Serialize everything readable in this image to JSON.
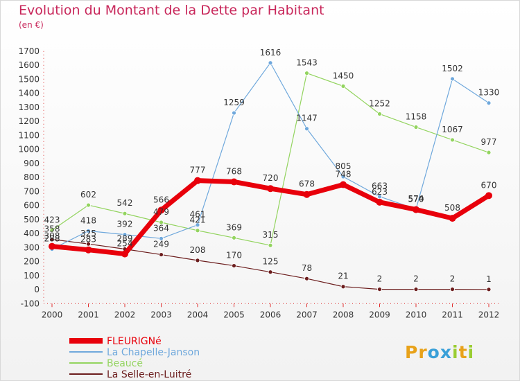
{
  "chart_data": {
    "type": "line",
    "title": "Evolution du Montant de la Dette par Habitant",
    "subtitle": "(en €)",
    "x": [
      "2000",
      "2001",
      "2002",
      "2003",
      "2004",
      "2005",
      "2006",
      "2007",
      "2008",
      "2009",
      "2010",
      "2011",
      "2012"
    ],
    "ylim": [
      -100,
      1700
    ],
    "yticks": [
      -100,
      0,
      100,
      200,
      300,
      400,
      500,
      600,
      700,
      800,
      900,
      1000,
      1100,
      1200,
      1300,
      1400,
      1500,
      1600,
      1700
    ],
    "grid": false,
    "legend_position": "bottom-left",
    "series": [
      {
        "name": "FLEURIGNé",
        "color": "#e8000b",
        "values": [
          308,
          283,
          254,
          566,
          777,
          768,
          720,
          678,
          748,
          623,
          570,
          508,
          670
        ]
      },
      {
        "name": "La Chapelle-Janson",
        "color": "#6fa8dc",
        "values": [
          288,
          418,
          392,
          364,
          461,
          1259,
          1616,
          1147,
          805,
          663,
          574,
          1502,
          1330
        ]
      },
      {
        "name": "Beaucé",
        "color": "#93d45f",
        "values": [
          423,
          602,
          542,
          479,
          421,
          369,
          315,
          1543,
          1450,
          1252,
          1158,
          1067,
          977
        ]
      },
      {
        "name": "La Selle-en-Luitré",
        "color": "#6b1c1c",
        "values": [
          358,
          325,
          289,
          249,
          208,
          170,
          125,
          78,
          21,
          2,
          2,
          2,
          1
        ]
      }
    ]
  },
  "logo": {
    "letters": [
      "P",
      "r",
      "o",
      "x",
      "i",
      "t",
      "i"
    ],
    "colors": [
      "#e8a21a",
      "#e8a21a",
      "#3aa0d8",
      "#3aa0d8",
      "#9acd32",
      "#e8a21a",
      "#9acd32"
    ]
  }
}
